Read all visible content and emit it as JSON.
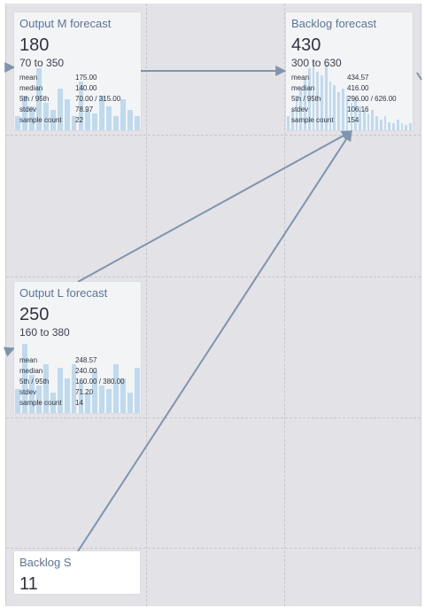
{
  "cards": [
    {
      "id": "output-m",
      "title": "Output M forecast",
      "value": "180",
      "range": "70 to 350",
      "stats": [
        {
          "label": "mean",
          "value": "175.00"
        },
        {
          "label": "median",
          "value": "140.00"
        },
        {
          "label": "5th / 95th",
          "value": "70.00 / 315.00"
        },
        {
          "label": "stdev",
          "value": "78.97"
        },
        {
          "label": "sample count",
          "value": "22"
        }
      ],
      "histogram": [
        0.2,
        0.5,
        0.35,
        0.9,
        0.4,
        0.3,
        0.6,
        0.45,
        0.2,
        0.7,
        0.3,
        0.25,
        0.5,
        0.35,
        0.2,
        0.45,
        0.3,
        0.2
      ]
    },
    {
      "id": "backlog-forecast",
      "title": "Backlog forecast",
      "value": "430",
      "range": "300 to 630",
      "stats": [
        {
          "label": "mean",
          "value": "434.57"
        },
        {
          "label": "median",
          "value": "416.00"
        },
        {
          "label": "5th / 95th",
          "value": "296.00 / 626.00"
        },
        {
          "label": "stdev",
          "value": "106.16"
        },
        {
          "label": "sample count",
          "value": "154"
        }
      ],
      "histogram": [
        0.2,
        0.3,
        0.45,
        0.6,
        0.75,
        0.9,
        1.0,
        0.85,
        0.8,
        0.95,
        0.7,
        0.65,
        0.55,
        0.6,
        0.5,
        0.4,
        0.45,
        0.35,
        0.3,
        0.25,
        0.3,
        0.2,
        0.15,
        0.2,
        0.12,
        0.1,
        0.15,
        0.1,
        0.08,
        0.1
      ]
    },
    {
      "id": "output-l",
      "title": "Output L forecast",
      "value": "250",
      "range": "160 to 380",
      "stats": [
        {
          "label": "mean",
          "value": "248.57"
        },
        {
          "label": "median",
          "value": "240.00"
        },
        {
          "label": "5th / 95th",
          "value": "160.00 / 380.00"
        },
        {
          "label": "stdev",
          "value": "71.20"
        },
        {
          "label": "sample count",
          "value": "14"
        }
      ],
      "histogram": [
        0.35,
        1.0,
        0.55,
        0.4,
        0.7,
        0.3,
        0.65,
        0.5,
        0.7,
        0.45,
        0.3,
        0.6,
        0.4,
        0.35,
        0.7,
        0.5,
        0.3,
        0.65
      ]
    },
    {
      "id": "backlog-s",
      "title": "Backlog S",
      "value": "11"
    }
  ],
  "colors": {
    "canvas": "#e3e3e7",
    "edge": "#7f94ad",
    "title": "#5b7598",
    "histogram": "#bfd9ee"
  }
}
